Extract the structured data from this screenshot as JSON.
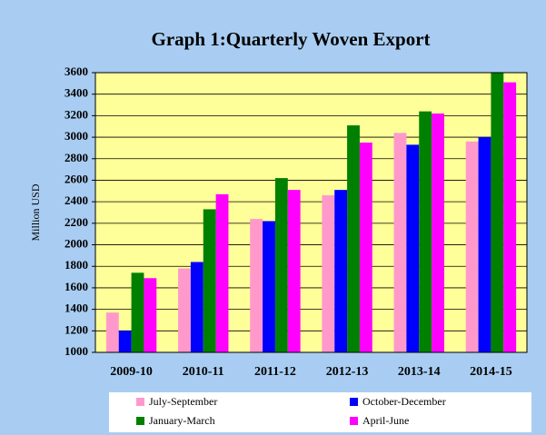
{
  "chart_data": {
    "type": "bar",
    "title": "Graph 1:Quarterly Woven Export",
    "y_label": "Million USD",
    "categories": [
      "2009-10",
      "2010-11",
      "2011-12",
      "2012-13",
      "2013-14",
      "2014-15"
    ],
    "series": [
      {
        "name": "July-September",
        "color": "#ff99cc",
        "values": [
          1370,
          1780,
          2240,
          2460,
          3040,
          2960
        ]
      },
      {
        "name": "October-December",
        "color": "#0000ff",
        "values": [
          1200,
          1840,
          2220,
          2510,
          2930,
          3000
        ]
      },
      {
        "name": "January-March",
        "color": "#008000",
        "values": [
          1740,
          2330,
          2620,
          3110,
          3240,
          3600
        ]
      },
      {
        "name": "April-June",
        "color": "#ff00ff",
        "values": [
          1690,
          2470,
          2510,
          2950,
          3220,
          3510
        ]
      }
    ],
    "ylim": [
      1000,
      3600
    ],
    "yticks": [
      1000,
      1200,
      1400,
      1600,
      1800,
      2000,
      2200,
      2400,
      2600,
      2800,
      3000,
      3200,
      3400,
      3600
    ],
    "grid": true,
    "legend": "bottom"
  }
}
